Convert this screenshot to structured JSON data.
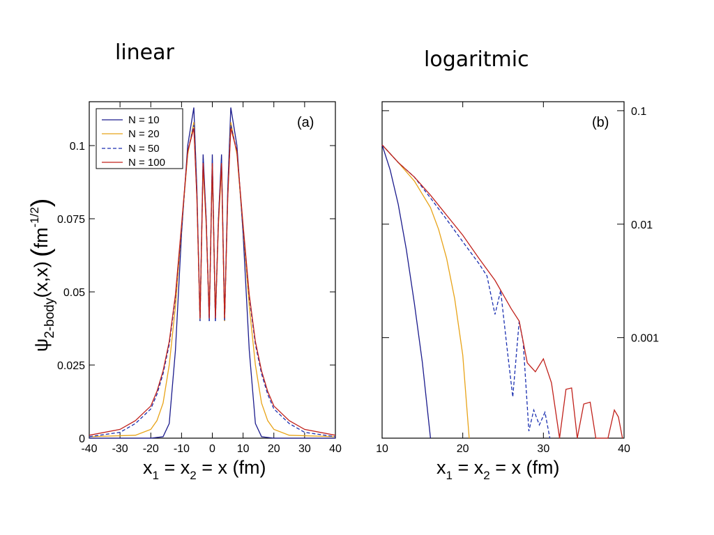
{
  "headings": {
    "left": "linear",
    "right": "logaritmic"
  },
  "chart_data": [
    {
      "type": "line",
      "panel_label": "(a)",
      "scale": "linear",
      "xlabel": "x1 = x2 = x (fm)",
      "ylabel": "ψ2-body(x,x) (fm^-1/2)",
      "xlim": [
        -40,
        40
      ],
      "ylim": [
        0,
        0.115
      ],
      "x_ticks": [
        -40,
        -30,
        -20,
        -10,
        0,
        10,
        20,
        30,
        40
      ],
      "y_ticks": [
        0,
        0.025,
        0.05,
        0.075,
        0.1
      ],
      "y_tick_labels": [
        "0",
        "0.025",
        "0.05",
        "0.075",
        "0.1"
      ],
      "legend": {
        "placement": "top-left",
        "entries": [
          "N = 10",
          "N = 20",
          "N = 50",
          "N = 100"
        ]
      },
      "grid": false,
      "series": [
        {
          "name": "N = 10",
          "color": "#1a1a8c",
          "dash": "solid",
          "x": [
            -40,
            -20,
            -16,
            -14,
            -12,
            -10,
            -8,
            -6,
            -5,
            -4,
            -3,
            -2,
            -1,
            0,
            1,
            2,
            3,
            4,
            5,
            6,
            8,
            10,
            12,
            14,
            16,
            20,
            40
          ],
          "y": [
            0,
            0,
            0.0005,
            0.005,
            0.03,
            0.07,
            0.1,
            0.113,
            0.085,
            0.04,
            0.097,
            0.075,
            0.04,
            0.097,
            0.04,
            0.075,
            0.097,
            0.04,
            0.085,
            0.113,
            0.1,
            0.07,
            0.03,
            0.005,
            0.0005,
            0,
            0
          ]
        },
        {
          "name": "N = 20",
          "color": "#e8a317",
          "dash": "solid",
          "x": [
            -40,
            -25,
            -20,
            -18,
            -16,
            -14,
            -12,
            -10,
            -8,
            -6,
            -5,
            -4,
            -3,
            -2,
            -1,
            0,
            1,
            2,
            3,
            4,
            5,
            6,
            8,
            10,
            12,
            14,
            16,
            18,
            20,
            25,
            40
          ],
          "y": [
            0.0005,
            0.001,
            0.003,
            0.006,
            0.012,
            0.025,
            0.045,
            0.072,
            0.097,
            0.108,
            0.082,
            0.04,
            0.093,
            0.073,
            0.042,
            0.093,
            0.042,
            0.073,
            0.093,
            0.04,
            0.082,
            0.108,
            0.097,
            0.072,
            0.045,
            0.025,
            0.012,
            0.006,
            0.003,
            0.001,
            0.0005
          ]
        },
        {
          "name": "N = 50",
          "color": "#1a2fb0",
          "dash": "dashed",
          "x": [
            -40,
            -30,
            -25,
            -20,
            -18,
            -16,
            -14,
            -12,
            -10,
            -8,
            -6,
            -5,
            -4,
            -3,
            -2,
            -1,
            0,
            1,
            2,
            3,
            4,
            5,
            6,
            8,
            10,
            12,
            14,
            16,
            18,
            20,
            25,
            30,
            40
          ],
          "y": [
            0.0005,
            0.002,
            0.005,
            0.01,
            0.015,
            0.022,
            0.032,
            0.048,
            0.072,
            0.098,
            0.107,
            0.083,
            0.04,
            0.095,
            0.075,
            0.04,
            0.095,
            0.04,
            0.075,
            0.095,
            0.04,
            0.083,
            0.107,
            0.098,
            0.072,
            0.048,
            0.032,
            0.022,
            0.015,
            0.01,
            0.005,
            0.002,
            0.0005
          ]
        },
        {
          "name": "N = 100",
          "color": "#c0201a",
          "dash": "solid",
          "x": [
            -40,
            -30,
            -25,
            -20,
            -18,
            -16,
            -14,
            -12,
            -10,
            -8,
            -6,
            -5,
            -4,
            -3,
            -2,
            -1,
            0,
            1,
            2,
            3,
            4,
            5,
            6,
            8,
            10,
            12,
            14,
            16,
            18,
            20,
            25,
            30,
            40
          ],
          "y": [
            0.001,
            0.003,
            0.006,
            0.011,
            0.016,
            0.023,
            0.033,
            0.049,
            0.073,
            0.098,
            0.106,
            0.082,
            0.041,
            0.094,
            0.074,
            0.041,
            0.094,
            0.041,
            0.074,
            0.094,
            0.041,
            0.082,
            0.106,
            0.098,
            0.073,
            0.049,
            0.033,
            0.023,
            0.016,
            0.011,
            0.006,
            0.003,
            0.001
          ]
        }
      ]
    },
    {
      "type": "line",
      "panel_label": "(b)",
      "scale": "log",
      "xlabel": "x1 = x2 = x (fm)",
      "xlim": [
        10,
        40
      ],
      "ylim": [
        0.00013,
        0.12
      ],
      "x_ticks": [
        10,
        20,
        30,
        40
      ],
      "y_ticks": [
        0.1,
        0.01,
        0.001
      ],
      "y_tick_labels": [
        "0.1",
        "0.01",
        "0.001"
      ],
      "y_axis_side": "right",
      "grid": false,
      "series": [
        {
          "name": "N = 10",
          "color": "#1a1a8c",
          "dash": "solid",
          "x": [
            10,
            11,
            12,
            13,
            14,
            15,
            16
          ],
          "y": [
            0.05,
            0.03,
            0.015,
            0.006,
            0.002,
            0.0006,
            0.00013
          ]
        },
        {
          "name": "N = 20",
          "color": "#e8a317",
          "dash": "solid",
          "x": [
            10,
            12,
            14,
            16,
            17,
            18,
            19,
            20,
            20.8
          ],
          "y": [
            0.05,
            0.035,
            0.024,
            0.014,
            0.009,
            0.005,
            0.0022,
            0.0007,
            0.00013
          ]
        },
        {
          "name": "N = 50",
          "color": "#1a2fb0",
          "dash": "dashed",
          "x": [
            10,
            12,
            14,
            16,
            18,
            20,
            22,
            23,
            24,
            24.7,
            25.5,
            26.2,
            27,
            27.5,
            28.2,
            28.8,
            29.5,
            30.2,
            30.8
          ],
          "y": [
            0.05,
            0.035,
            0.026,
            0.017,
            0.011,
            0.007,
            0.0045,
            0.0035,
            0.0016,
            0.0026,
            0.0008,
            0.0003,
            0.0014,
            0.0009,
            0.00015,
            0.00023,
            0.00017,
            0.00022,
            0.00013
          ]
        },
        {
          "name": "N = 100",
          "color": "#c0201a",
          "dash": "solid",
          "x": [
            10,
            12,
            14,
            16,
            18,
            20,
            22,
            24,
            25,
            26,
            27,
            28,
            29,
            30,
            31,
            32,
            32.8,
            33.5,
            34.2,
            35,
            35.8,
            36.5,
            37.2,
            38,
            38.8,
            39.3,
            39.8
          ],
          "y": [
            0.05,
            0.035,
            0.026,
            0.018,
            0.012,
            0.008,
            0.005,
            0.0032,
            0.0024,
            0.0018,
            0.0014,
            0.0006,
            0.0005,
            0.00065,
            0.0004,
            0.00013,
            0.00035,
            0.00036,
            0.00013,
            0.00026,
            0.00027,
            0.00013,
            0.00013,
            0.00013,
            0.00023,
            0.0002,
            0.00013
          ]
        }
      ]
    }
  ]
}
